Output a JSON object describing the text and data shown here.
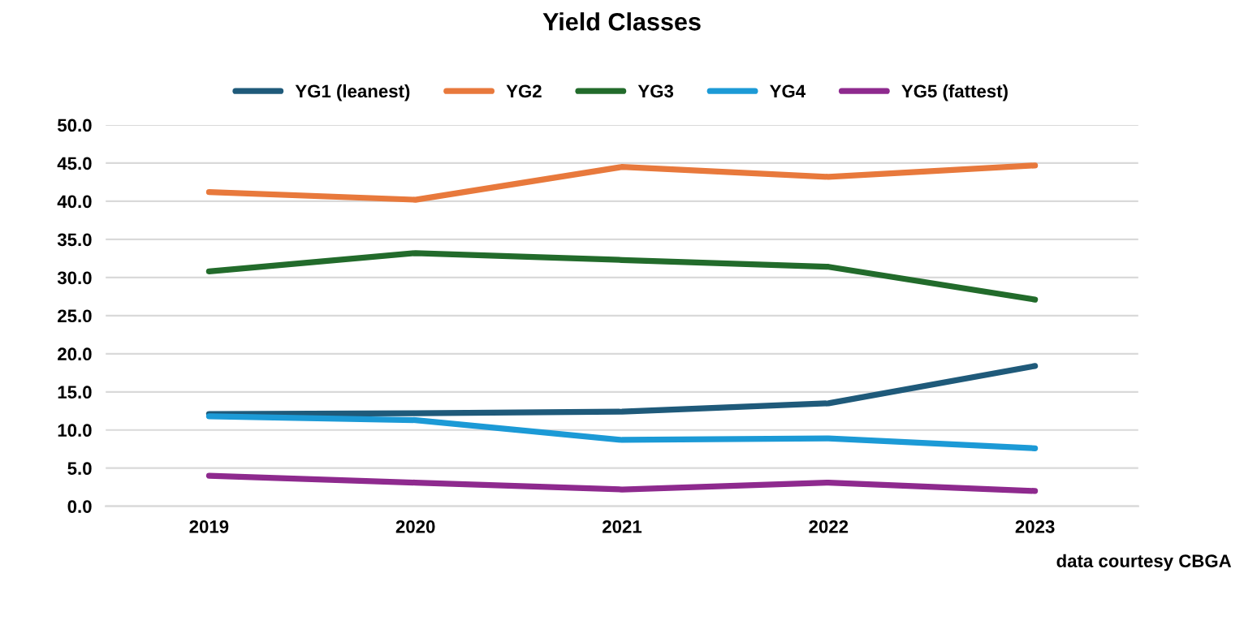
{
  "chart_data": {
    "type": "line",
    "title": "Yield Classes",
    "categories": [
      "2019",
      "2020",
      "2021",
      "2022",
      "2023"
    ],
    "series": [
      {
        "name": "YG1 (leanest)",
        "color": "#1f5a7a",
        "values": [
          12.1,
          12.2,
          12.4,
          13.5,
          18.4
        ]
      },
      {
        "name": "YG2",
        "color": "#e8793c",
        "values": [
          41.2,
          40.2,
          44.5,
          43.2,
          44.7
        ]
      },
      {
        "name": "YG3",
        "color": "#226b2b",
        "values": [
          30.8,
          33.2,
          32.3,
          31.4,
          27.1
        ]
      },
      {
        "name": "YG4",
        "color": "#1c9ad6",
        "values": [
          11.8,
          11.3,
          8.7,
          8.9,
          7.6
        ]
      },
      {
        "name": "YG5 (fattest)",
        "color": "#8e2a8e",
        "values": [
          4.0,
          3.1,
          2.2,
          3.1,
          2.0
        ]
      }
    ],
    "ylim": [
      0,
      50
    ],
    "yticks": [
      {
        "value": 0,
        "label": "0.0"
      },
      {
        "value": 5,
        "label": "5.0"
      },
      {
        "value": 10,
        "label": "10.0"
      },
      {
        "value": 15,
        "label": "15.0"
      },
      {
        "value": 20,
        "label": "20.0"
      },
      {
        "value": 25,
        "label": "25.0"
      },
      {
        "value": 30,
        "label": "30.0"
      },
      {
        "value": 35,
        "label": "35.0"
      },
      {
        "value": 40,
        "label": "40.0"
      },
      {
        "value": 45,
        "label": "45.0"
      },
      {
        "value": 50,
        "label": "50.0"
      }
    ],
    "grid": "y",
    "legend": "top",
    "marker": "none",
    "line_style": "solid",
    "annotations": [
      "data courtesy CBGA"
    ]
  }
}
